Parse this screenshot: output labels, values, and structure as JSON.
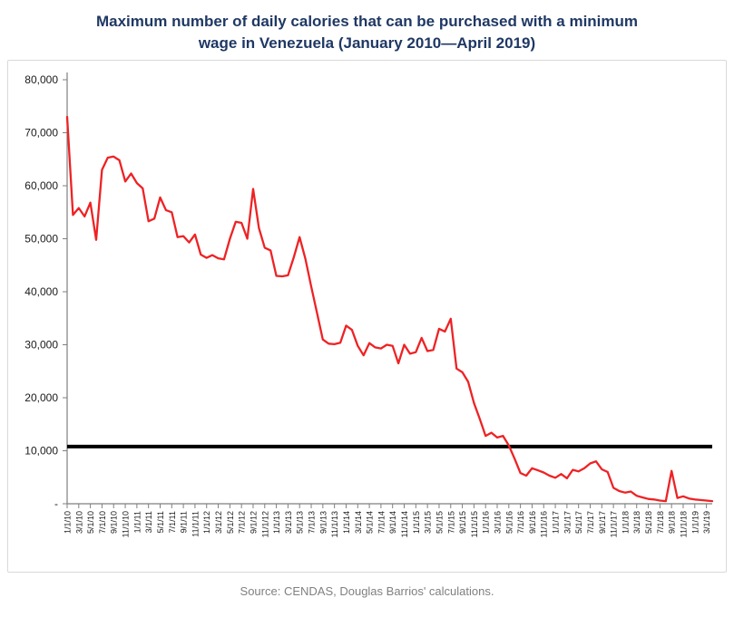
{
  "header": {
    "title": "Maximum number of daily calories that can be purchased with a minimum wage in Venezuela (January 2010—April 2019)"
  },
  "footer": {
    "source": "Source: CENDAS, Douglas Barrios' calculations."
  },
  "chart_data": {
    "type": "line",
    "title": "Maximum number of daily calories that can be purchased with a minimum wage in Venezuela (January 2010—April 2019)",
    "xlabel": "",
    "ylabel": "",
    "ylim": [
      0,
      80000
    ],
    "y_tick_step": 10000,
    "y_tick_labels": [
      "-",
      "10,000",
      "20,000",
      "30,000",
      "40,000",
      "50,000",
      "60,000",
      "70,000",
      "80,000"
    ],
    "x_tick_every": 2,
    "grid": false,
    "legend": null,
    "series_color": "#ee2224",
    "reference_line": {
      "value": 10800,
      "color": "#000000"
    },
    "x": [
      "1/1/10",
      "2/1/10",
      "3/1/10",
      "4/1/10",
      "5/1/10",
      "6/1/10",
      "7/1/10",
      "8/1/10",
      "9/1/10",
      "10/1/10",
      "11/1/10",
      "12/1/10",
      "1/1/11",
      "2/1/11",
      "3/1/11",
      "4/1/11",
      "5/1/11",
      "6/1/11",
      "7/1/11",
      "8/1/11",
      "9/1/11",
      "10/1/11",
      "11/1/11",
      "12/1/11",
      "1/1/12",
      "2/1/12",
      "3/1/12",
      "4/1/12",
      "5/1/12",
      "6/1/12",
      "7/1/12",
      "8/1/12",
      "9/1/12",
      "10/1/12",
      "11/1/12",
      "12/1/12",
      "1/1/13",
      "2/1/13",
      "3/1/13",
      "4/1/13",
      "5/1/13",
      "6/1/13",
      "7/1/13",
      "8/1/13",
      "9/1/13",
      "10/1/13",
      "11/1/13",
      "12/1/13",
      "1/1/14",
      "2/1/14",
      "3/1/14",
      "4/1/14",
      "5/1/14",
      "6/1/14",
      "7/1/14",
      "8/1/14",
      "9/1/14",
      "10/1/14",
      "11/1/14",
      "12/1/14",
      "1/1/15",
      "2/1/15",
      "3/1/15",
      "4/1/15",
      "5/1/15",
      "6/1/15",
      "7/1/15",
      "8/1/15",
      "9/1/15",
      "10/1/15",
      "11/1/15",
      "12/1/15",
      "1/1/16",
      "2/1/16",
      "3/1/16",
      "4/1/16",
      "5/1/16",
      "6/1/16",
      "7/1/16",
      "8/1/16",
      "9/1/16",
      "10/1/16",
      "11/1/16",
      "12/1/16",
      "1/1/17",
      "2/1/17",
      "3/1/17",
      "4/1/17",
      "5/1/17",
      "6/1/17",
      "7/1/17",
      "8/1/17",
      "9/1/17",
      "10/1/17",
      "11/1/17",
      "12/1/17",
      "1/1/18",
      "2/1/18",
      "3/1/18",
      "4/1/18",
      "5/1/18",
      "6/1/18",
      "7/1/18",
      "8/1/18",
      "9/1/18",
      "10/1/18",
      "11/1/18",
      "12/1/18",
      "1/1/19",
      "2/1/19",
      "3/1/19",
      "4/1/19"
    ],
    "values": [
      73000,
      54500,
      55800,
      54200,
      56800,
      49800,
      63000,
      65300,
      65500,
      64800,
      60800,
      62300,
      60500,
      59500,
      53300,
      53800,
      57800,
      55400,
      55000,
      50300,
      50500,
      49300,
      50800,
      47000,
      46400,
      46900,
      46300,
      46100,
      50000,
      53200,
      53000,
      50000,
      59400,
      52000,
      48300,
      47800,
      43000,
      42900,
      43100,
      46500,
      50300,
      46200,
      41000,
      36000,
      31000,
      30200,
      30100,
      30400,
      33600,
      32800,
      29800,
      28000,
      30300,
      29500,
      29300,
      30000,
      29800,
      26500,
      30000,
      28300,
      28600,
      31300,
      28800,
      29000,
      33000,
      32500,
      34900,
      25500,
      24800,
      23000,
      19000,
      16000,
      12800,
      13400,
      12500,
      12800,
      11000,
      8500,
      5800,
      5300,
      6700,
      6300,
      5900,
      5300,
      4900,
      5600,
      4800,
      6400,
      6100,
      6700,
      7600,
      8000,
      6500,
      6000,
      3000,
      2400,
      2100,
      2300,
      1500,
      1200,
      900,
      800,
      600,
      500,
      6200,
      1100,
      1400,
      1000,
      800,
      700,
      600,
      500
    ]
  }
}
